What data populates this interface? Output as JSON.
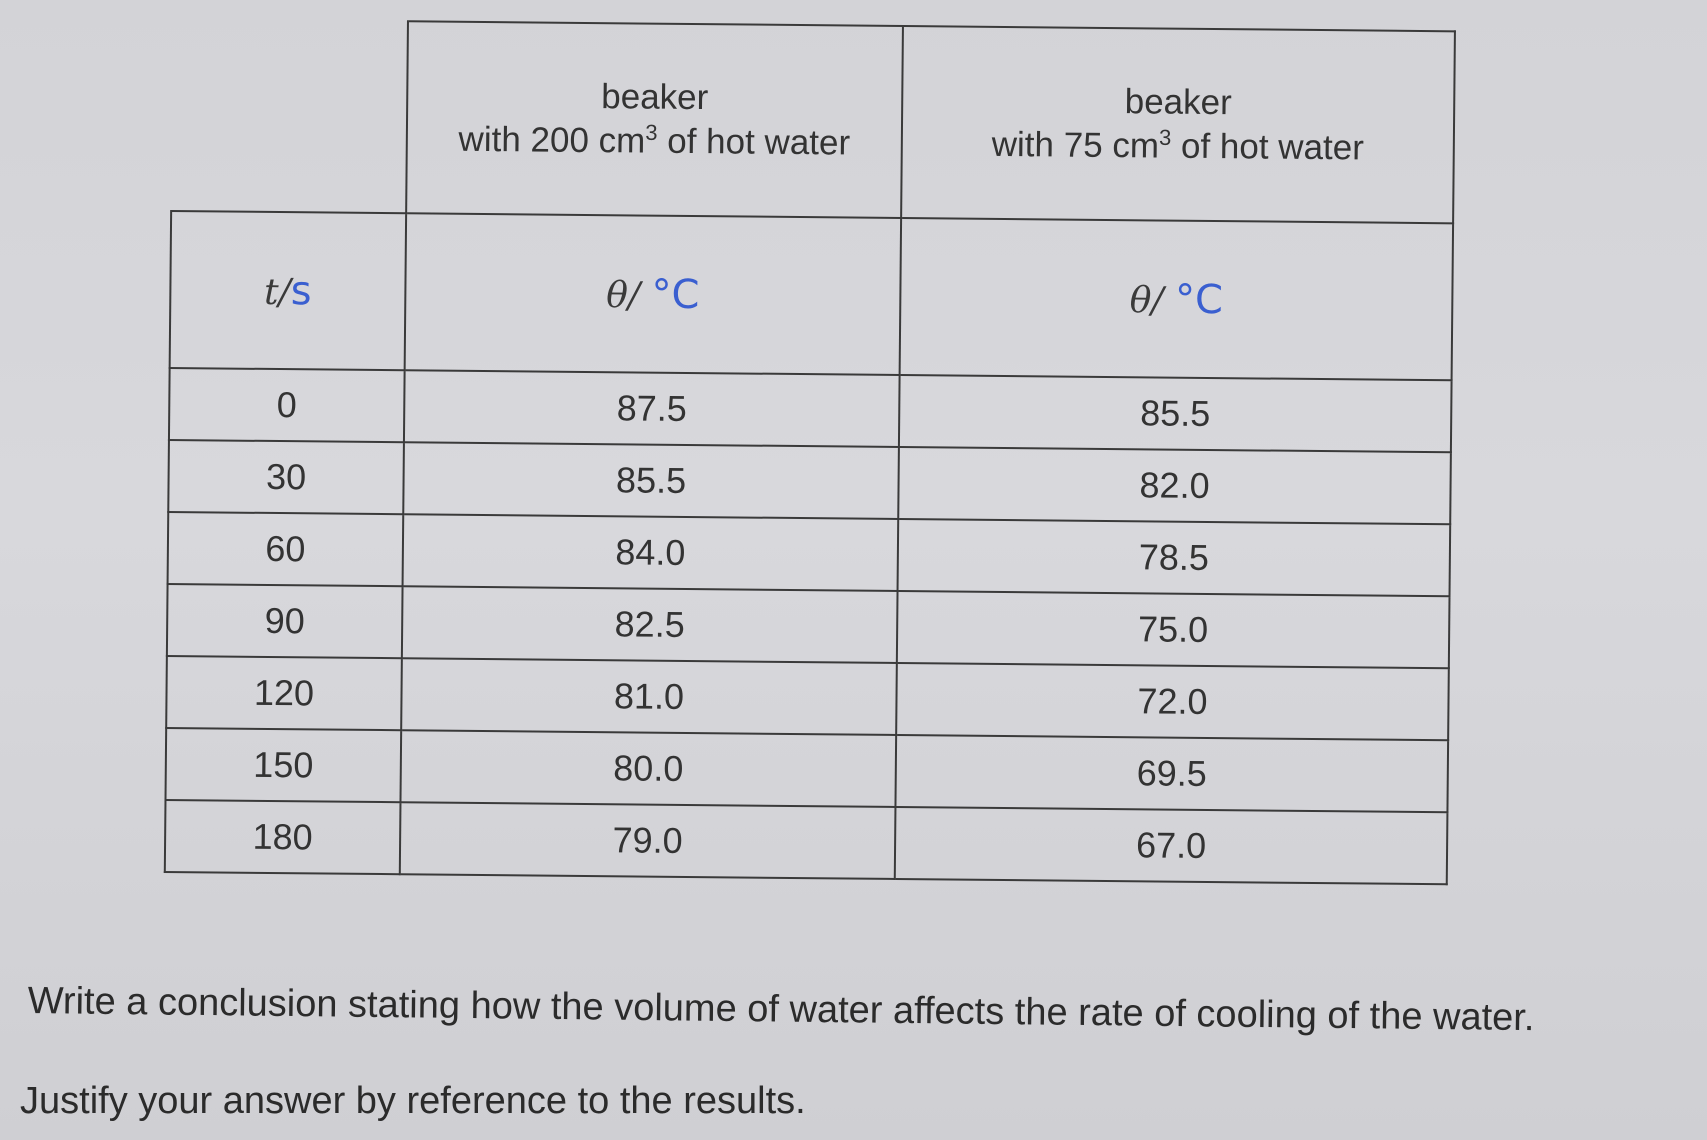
{
  "table": {
    "headers": {
      "col_a": {
        "line1": "beaker",
        "line2_prefix": "with 200 cm",
        "line2_sup": "3",
        "line2_suffix": " of hot water"
      },
      "col_b": {
        "line1": "beaker",
        "line2_prefix": "with 75 cm",
        "line2_sup": "3",
        "line2_suffix": " of hot water"
      }
    },
    "units": {
      "time_prefix": "t/",
      "time_handwritten": "s",
      "col_a_prefix": "θ/ ",
      "col_a_handwritten": "°C",
      "col_b_prefix": "θ/ ",
      "col_b_handwritten": "°C"
    },
    "rows": [
      {
        "t": "0",
        "a": "87.5",
        "b": "85.5"
      },
      {
        "t": "30",
        "a": "85.5",
        "b": "82.0"
      },
      {
        "t": "60",
        "a": "84.0",
        "b": "78.5"
      },
      {
        "t": "90",
        "a": "82.5",
        "b": "75.0"
      },
      {
        "t": "120",
        "a": "81.0",
        "b": "72.0"
      },
      {
        "t": "150",
        "a": "80.0",
        "b": "69.5"
      },
      {
        "t": "180",
        "a": "79.0",
        "b": "67.0"
      }
    ]
  },
  "question": "Write a conclusion stating how the volume of water affects the rate of cooling of the water.",
  "instruction": "Justify your answer by reference to the results."
}
